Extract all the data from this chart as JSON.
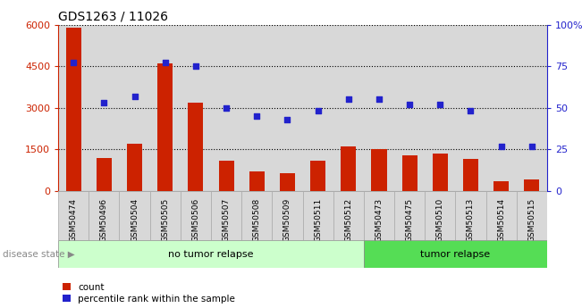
{
  "title": "GDS1263 / 11026",
  "categories": [
    "GSM50474",
    "GSM50496",
    "GSM50504",
    "GSM50505",
    "GSM50506",
    "GSM50507",
    "GSM50508",
    "GSM50509",
    "GSM50511",
    "GSM50512",
    "GSM50473",
    "GSM50475",
    "GSM50510",
    "GSM50513",
    "GSM50514",
    "GSM50515"
  ],
  "counts": [
    5900,
    1200,
    1700,
    4600,
    3200,
    1100,
    700,
    650,
    1100,
    1600,
    1500,
    1300,
    1350,
    1150,
    350,
    400
  ],
  "percentiles": [
    77,
    53,
    57,
    77,
    75,
    50,
    45,
    43,
    48,
    55,
    55,
    52,
    52,
    48,
    27,
    27
  ],
  "bar_color": "#cc2200",
  "dot_color": "#2222cc",
  "ylim_left": [
    0,
    6000
  ],
  "ylim_right": [
    0,
    100
  ],
  "yticks_left": [
    0,
    1500,
    3000,
    4500,
    6000
  ],
  "ytick_labels_left": [
    "0",
    "1500",
    "3000",
    "4500",
    "6000"
  ],
  "yticks_right": [
    0,
    25,
    50,
    75,
    100
  ],
  "ytick_labels_right": [
    "0",
    "25",
    "50",
    "75",
    "100%"
  ],
  "no_relapse_count": 10,
  "tumor_relapse_count": 6,
  "no_relapse_label": "no tumor relapse",
  "tumor_relapse_label": "tumor relapse",
  "disease_state_label": "disease state",
  "legend_count_label": "count",
  "legend_pct_label": "percentile rank within the sample",
  "bar_area_bg": "#d8d8d8",
  "no_relapse_bg": "#ccffcc",
  "tumor_relapse_bg": "#55dd55",
  "plot_bg": "#ffffff",
  "grid_color": "#000000"
}
